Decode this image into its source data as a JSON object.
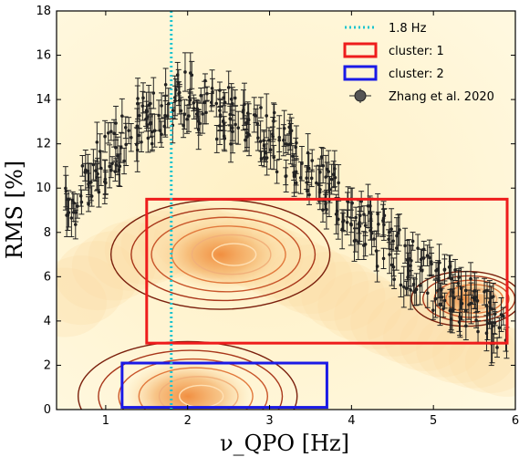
{
  "chart_data": {
    "type": "scatter",
    "xlabel": "ν_QPO [Hz]",
    "ylabel": "RMS [%]",
    "xlim": [
      0.4,
      6.0
    ],
    "ylim": [
      0,
      18
    ],
    "xticks": [
      1,
      2,
      3,
      4,
      5,
      6
    ],
    "yticks": [
      0,
      2,
      4,
      6,
      8,
      10,
      12,
      14,
      16,
      18
    ],
    "grid": false,
    "legend_position": "top-right",
    "legend": [
      {
        "label": "1.8 Hz",
        "kind": "dotted-line",
        "color": "#1cc4cf"
      },
      {
        "label": "cluster: 1",
        "kind": "box",
        "color": "#ee1c1c"
      },
      {
        "label": "cluster: 2",
        "kind": "box",
        "color": "#1a1ae6"
      },
      {
        "label": "Zhang et al. 2020",
        "kind": "errorbar-point",
        "color": "#222222"
      }
    ],
    "vline": {
      "x": 1.8,
      "label": "1.8 Hz",
      "color": "#1cc4cf"
    },
    "clusters": [
      {
        "label": "cluster: 1",
        "x": [
          1.5,
          5.9
        ],
        "y": [
          3.0,
          9.5
        ],
        "color": "#ee1c1c"
      },
      {
        "label": "cluster: 2",
        "x": [
          1.2,
          3.7
        ],
        "y": [
          0.1,
          2.1
        ],
        "color": "#1a1ae6"
      }
    ],
    "density_peaks": [
      {
        "x": 2.4,
        "y": 7.0,
        "level": "high"
      },
      {
        "x": 2.0,
        "y": 0.6,
        "level": "high"
      },
      {
        "x": 5.4,
        "y": 5.0,
        "level": "medium"
      }
    ],
    "trend_points": [
      {
        "x": 0.5,
        "y": 8.8
      },
      {
        "x": 0.7,
        "y": 9.8
      },
      {
        "x": 0.9,
        "y": 11.0
      },
      {
        "x": 1.1,
        "y": 11.8
      },
      {
        "x": 1.3,
        "y": 12.6
      },
      {
        "x": 1.5,
        "y": 13.1
      },
      {
        "x": 1.7,
        "y": 13.5
      },
      {
        "x": 1.9,
        "y": 14.0
      },
      {
        "x": 2.1,
        "y": 14.0
      },
      {
        "x": 2.3,
        "y": 13.6
      },
      {
        "x": 2.5,
        "y": 13.3
      },
      {
        "x": 2.7,
        "y": 13.0
      },
      {
        "x": 2.9,
        "y": 12.6
      },
      {
        "x": 3.1,
        "y": 12.0
      },
      {
        "x": 3.3,
        "y": 11.3
      },
      {
        "x": 3.5,
        "y": 10.7
      },
      {
        "x": 3.7,
        "y": 10.1
      },
      {
        "x": 3.9,
        "y": 9.3
      },
      {
        "x": 4.1,
        "y": 8.5
      },
      {
        "x": 4.3,
        "y": 7.8
      },
      {
        "x": 4.5,
        "y": 7.2
      },
      {
        "x": 4.7,
        "y": 6.6
      },
      {
        "x": 4.9,
        "y": 6.0
      },
      {
        "x": 5.1,
        "y": 5.5
      },
      {
        "x": 5.3,
        "y": 5.0
      },
      {
        "x": 5.5,
        "y": 4.6
      },
      {
        "x": 5.7,
        "y": 4.2
      },
      {
        "x": 5.9,
        "y": 3.9
      }
    ]
  }
}
